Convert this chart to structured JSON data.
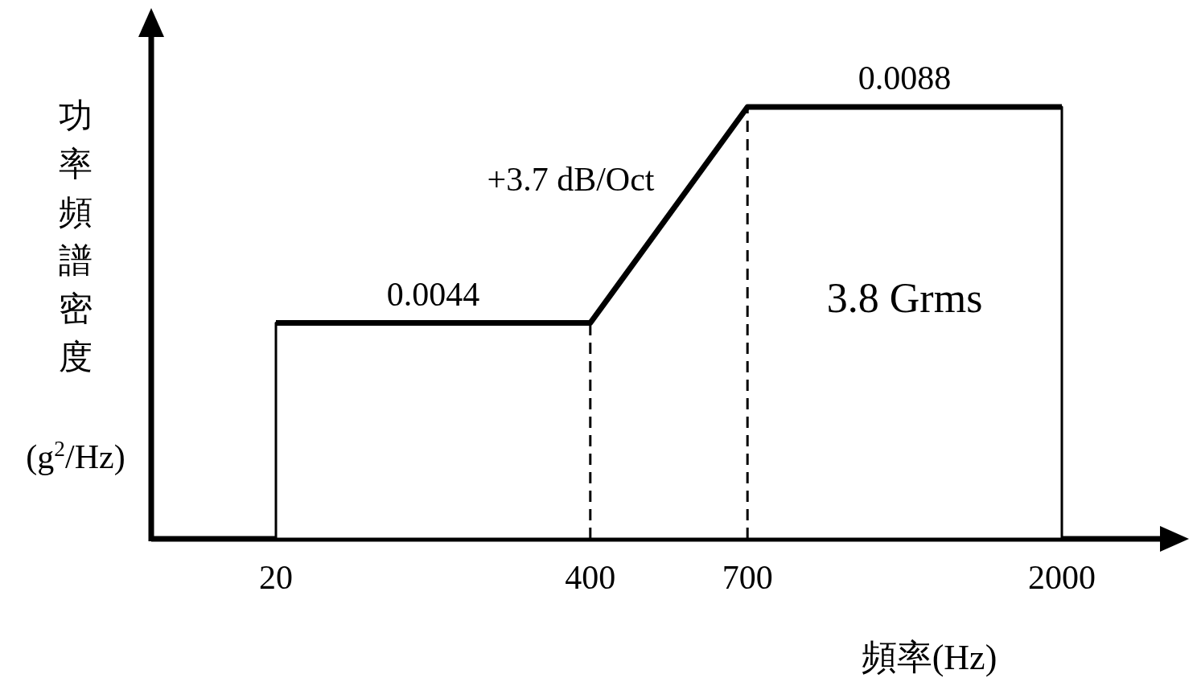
{
  "chart_data": {
    "type": "area",
    "categories": [
      "20",
      null,
      "400",
      "700",
      null,
      "2000"
    ],
    "values": [
      0.0044,
      0.0044,
      0.0044,
      0.0088,
      0.0088,
      0.0088
    ],
    "value_labels": [
      null,
      "0.0044",
      null,
      null,
      "0.0088",
      null
    ],
    "color": "#000000",
    "xlabel": "頻率(Hz)",
    "ylabel": "功率頻譜密度(g$^{2}$/Hz)",
    "annotations": [
      "+3.7 dB/Oct",
      "3.8 Grms"
    ],
    "ref_lines": [
      {
        "axis": "x",
        "value": "400",
        "line_style": "dashed"
      },
      {
        "axis": "x",
        "value": "700",
        "line_style": "dashed"
      }
    ],
    "tick_labels": "x"
  }
}
